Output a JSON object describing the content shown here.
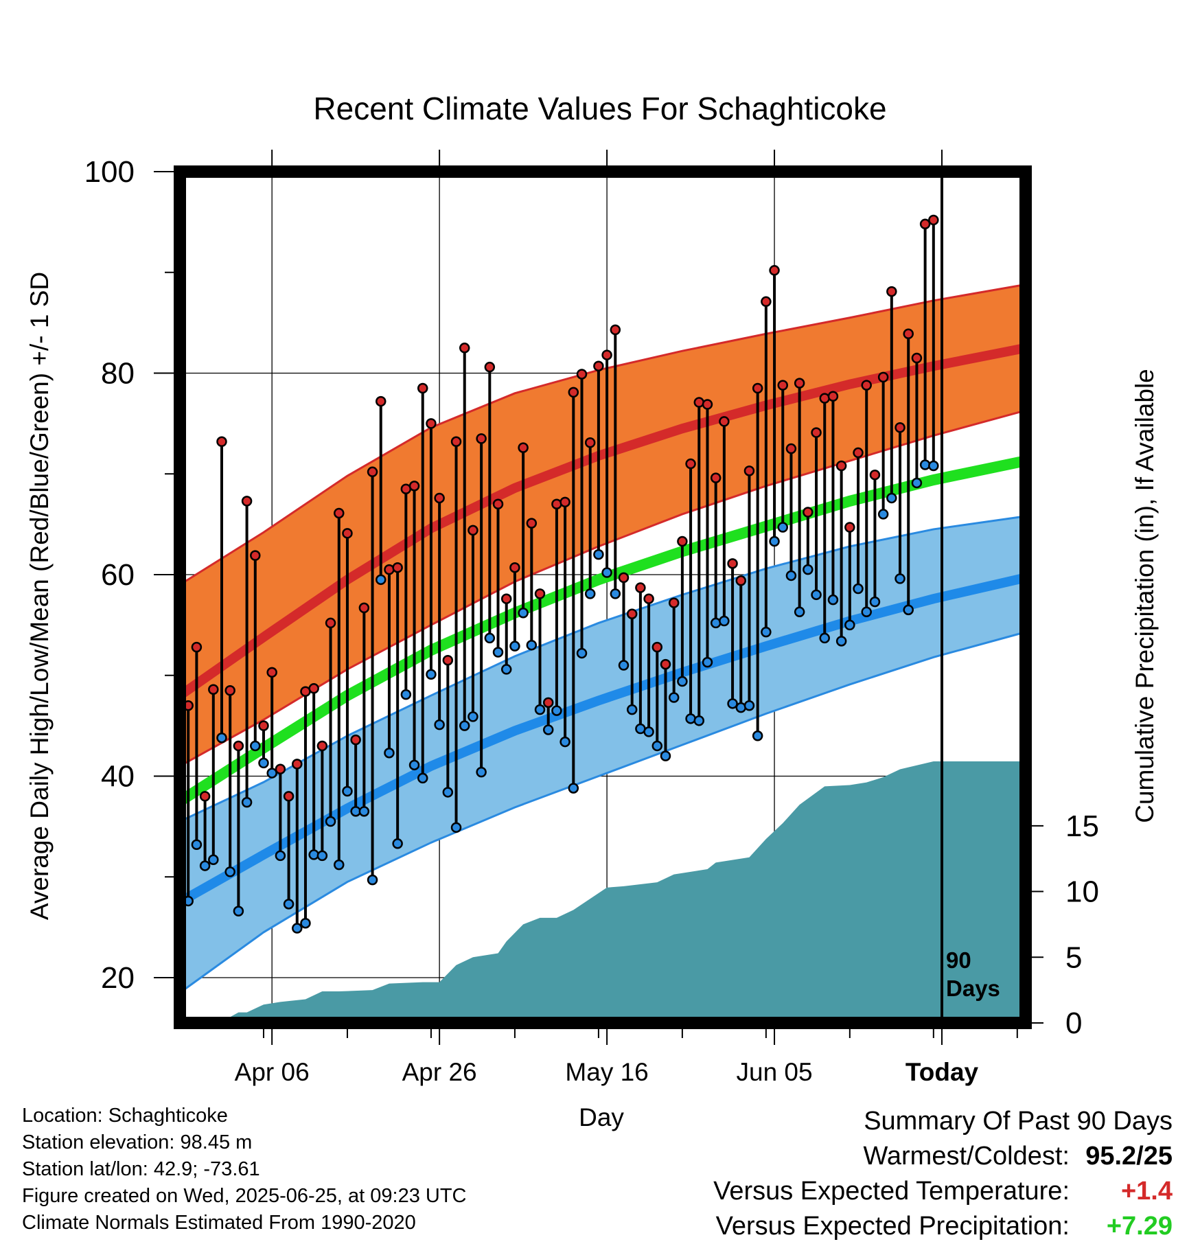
{
  "chart_data": {
    "type": "line",
    "title": "Recent Climate Values For Schaghticoke",
    "xlabel": "Day",
    "ylabel": "Average Daily High/Low/Mean (Red/Blue/Green) +/- 1 SD",
    "y2label": "Cumulative Precipitation (in), If Available",
    "ylim": [
      15.5,
      100
    ],
    "y2lim": [
      0,
      19.9
    ],
    "yticks": [
      "20",
      "40",
      "60",
      "80",
      "100"
    ],
    "y2ticks": [
      "0",
      "5",
      "10",
      "15"
    ],
    "xlim": [
      "2025-03-26",
      "2025-07-05"
    ],
    "xticks": [
      {
        "date": "2025-04-06",
        "label": "Apr 06"
      },
      {
        "date": "2025-04-26",
        "label": "Apr 26"
      },
      {
        "date": "2025-05-16",
        "label": "May 16"
      },
      {
        "date": "2025-06-05",
        "label": "Jun 05"
      },
      {
        "date": "2025-06-25",
        "label": "Today"
      }
    ],
    "today_marker": {
      "date": "2025-06-25",
      "label_line1": "90",
      "label_line2": "Days"
    },
    "grid": true,
    "normals": {
      "dates": [
        "2025-03-26",
        "2025-04-05",
        "2025-04-15",
        "2025-04-25",
        "2025-05-05",
        "2025-05-15",
        "2025-05-25",
        "2025-06-04",
        "2025-06-14",
        "2025-06-24",
        "2025-07-05"
      ],
      "high_mean": [
        48.0,
        53.8,
        59.5,
        64.6,
        68.6,
        71.8,
        74.5,
        76.8,
        78.9,
        80.7,
        82.5
      ],
      "high_upper": [
        59.0,
        64.2,
        69.8,
        74.6,
        78.0,
        80.3,
        82.2,
        83.9,
        85.5,
        87.2,
        88.8
      ],
      "high_lower": [
        41.0,
        45.6,
        50.6,
        55.0,
        59.3,
        62.8,
        66.0,
        68.8,
        71.3,
        73.8,
        76.3
      ],
      "mean": [
        37.5,
        42.8,
        48.0,
        52.5,
        56.2,
        59.5,
        62.3,
        64.8,
        67.3,
        69.4,
        71.3
      ],
      "low_mean": [
        27.5,
        32.2,
        36.8,
        41.0,
        44.5,
        47.5,
        50.3,
        52.9,
        55.4,
        57.6,
        59.7
      ],
      "low_upper": [
        35.5,
        39.4,
        44.0,
        48.0,
        51.9,
        55.2,
        58.0,
        60.6,
        62.8,
        64.5,
        65.8
      ],
      "low_lower": [
        18.5,
        24.5,
        29.5,
        33.4,
        36.9,
        40.0,
        43.1,
        46.2,
        49.1,
        51.8,
        54.3
      ]
    },
    "series": [
      {
        "name": "High",
        "color": "#d42a2a",
        "start": "2025-03-27",
        "values": [
          47,
          52.8,
          38,
          48.6,
          73.2,
          48.5,
          43,
          67.3,
          61.9,
          45,
          50.3,
          40.7,
          38,
          41.2,
          48.4,
          48.7,
          43,
          55.2,
          66.1,
          64.1,
          43.6,
          56.7,
          70.2,
          77.2,
          60.5,
          60.7,
          68.5,
          68.8,
          78.5,
          75,
          67.6,
          51.5,
          73.2,
          82.5,
          64.4,
          73.5,
          80.6,
          67,
          57.6,
          60.7,
          72.6,
          65.1,
          58.1,
          47.3,
          67,
          67.2,
          78.1,
          79.9,
          73.1,
          80.7,
          81.8,
          84.3,
          59.7,
          56.1,
          58.7,
          57.6,
          52.8,
          51.1,
          57.2,
          63.3,
          71,
          77.1,
          76.9,
          69.6,
          75.2,
          61.1,
          59.4,
          70.3,
          78.5,
          87.1,
          90.2,
          78.8,
          72.5,
          79,
          66.2,
          74.1,
          77.5,
          77.7,
          70.8,
          64.7,
          72.1,
          78.8,
          69.9,
          79.6,
          88.1,
          74.6,
          83.9,
          81.5,
          94.8,
          95.2
        ]
      },
      {
        "name": "Low",
        "color": "#2a8ae0",
        "start": "2025-03-27",
        "values": [
          27.6,
          33.2,
          31.1,
          31.7,
          43.8,
          30.5,
          26.6,
          37.4,
          43,
          41.3,
          40.3,
          32.1,
          27.3,
          24.9,
          25.4,
          32.2,
          32.1,
          35.5,
          31.2,
          38.5,
          36.5,
          36.5,
          29.7,
          59.5,
          42.3,
          33.3,
          48.1,
          41.1,
          39.8,
          50.1,
          45.1,
          38.4,
          34.9,
          45,
          45.9,
          40.4,
          53.7,
          52.3,
          50.6,
          52.9,
          56.2,
          53,
          46.6,
          44.6,
          46.5,
          43.4,
          38.8,
          52.2,
          58.1,
          62,
          60.2,
          58.1,
          51,
          46.6,
          44.7,
          44.4,
          43,
          42,
          47.8,
          49.4,
          45.7,
          45.5,
          51.3,
          55.2,
          55.4,
          47.2,
          46.8,
          47,
          44,
          54.3,
          63.3,
          64.7,
          59.9,
          56.3,
          60.5,
          58,
          53.7,
          57.5,
          53.4,
          55,
          58.6,
          56.3,
          57.3,
          66,
          67.6,
          59.6,
          56.5,
          69.1,
          70.9,
          70.8
        ]
      }
    ],
    "precipitation": {
      "color": "#4a9aa5",
      "dates": [
        "2025-03-26",
        "2025-03-29",
        "2025-03-31",
        "2025-04-02",
        "2025-04-03",
        "2025-04-05",
        "2025-04-07",
        "2025-04-10",
        "2025-04-12",
        "2025-04-14",
        "2025-04-18",
        "2025-04-20",
        "2025-04-24",
        "2025-04-25",
        "2025-04-26",
        "2025-04-28",
        "2025-04-30",
        "2025-05-03",
        "2025-05-04",
        "2025-05-06",
        "2025-05-08",
        "2025-05-10",
        "2025-05-12",
        "2025-05-16",
        "2025-05-18",
        "2025-05-22",
        "2025-05-24",
        "2025-05-28",
        "2025-05-29",
        "2025-06-02",
        "2025-06-04",
        "2025-06-06",
        "2025-06-08",
        "2025-06-11",
        "2025-06-14",
        "2025-06-16",
        "2025-06-18",
        "2025-06-20",
        "2025-06-24",
        "2025-07-05"
      ],
      "values": [
        0,
        0.1,
        0.1,
        0.8,
        0.8,
        1.4,
        1.6,
        1.8,
        2.4,
        2.4,
        2.5,
        3.0,
        3.1,
        3.1,
        3.1,
        4.4,
        5.0,
        5.3,
        6.2,
        7.5,
        8.0,
        8.0,
        8.6,
        10.3,
        10.4,
        10.7,
        11.3,
        11.7,
        12.2,
        12.6,
        14.0,
        15.2,
        16.6,
        18.0,
        18.1,
        18.3,
        18.7,
        19.3,
        19.9,
        19.9
      ]
    }
  },
  "footer_info": {
    "location": "Location: Schaghticoke",
    "elevation": "Station elevation: 98.45 m",
    "latlon": "Station lat/lon: 42.9; -73.61",
    "created": "Figure created on Wed, 2025-06-25, at 09:23 UTC",
    "normals": "Climate Normals Estimated From 1990-2020"
  },
  "summary": {
    "heading": "Summary Of Past 90 Days",
    "warmest_label": "Warmest/Coldest:",
    "warmest_value": "95.2/25",
    "temp_label": "Versus Expected Temperature:",
    "temp_value": "+1.4",
    "precip_label": "Versus Expected Precipitation:",
    "precip_value": "+7.29"
  }
}
